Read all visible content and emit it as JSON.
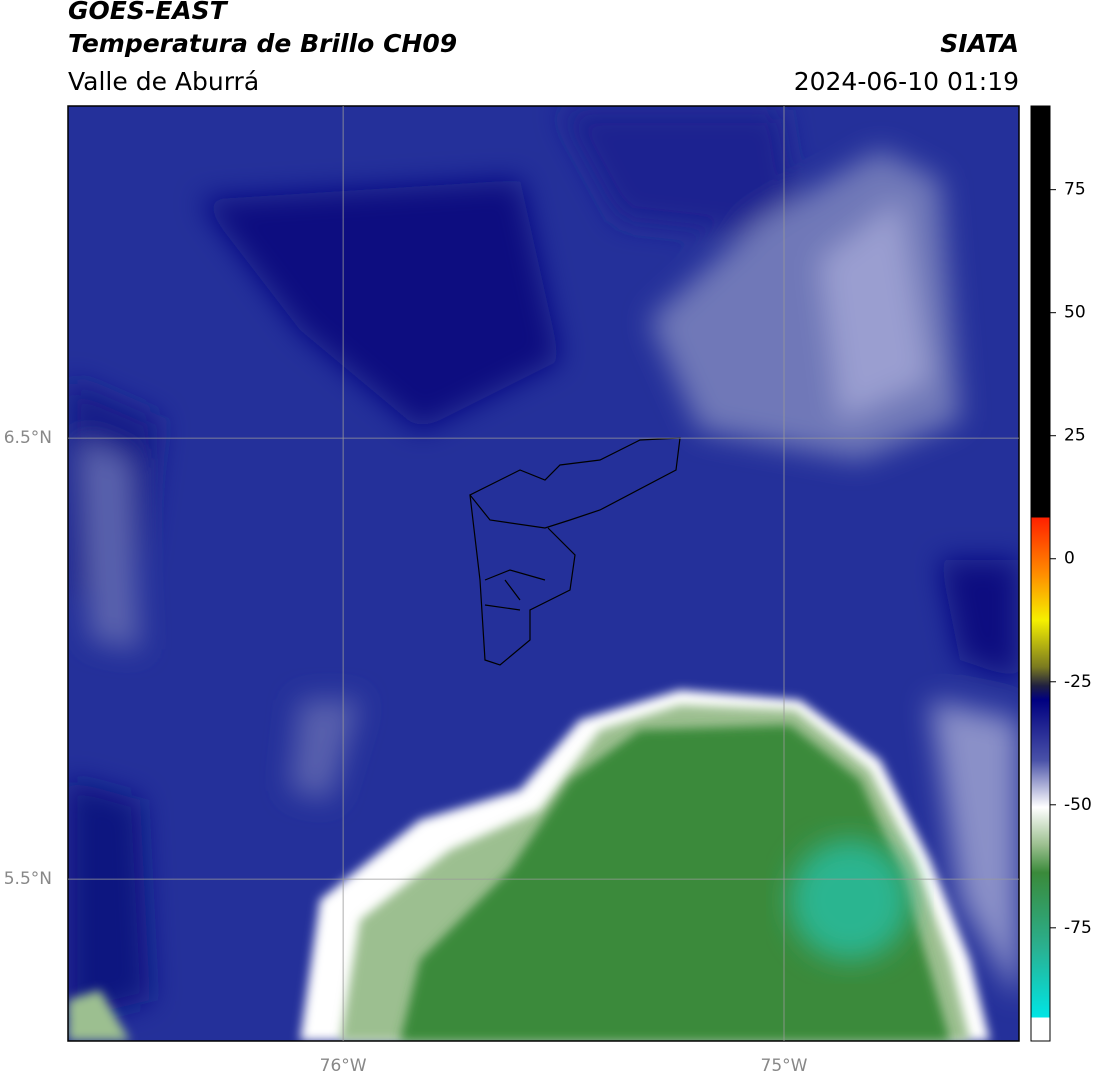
{
  "header": {
    "title": "GOES-EAST",
    "subtitle": "Temperatura de Brillo CH09",
    "region": "Valle de Aburrá",
    "source": "SIATA",
    "datetime": "2024-06-10 01:19"
  },
  "map": {
    "lon_range": [
      -76.624,
      -74.467
    ],
    "lat_range": [
      5.133,
      7.253
    ],
    "lon_ticks": [
      {
        "value": -76,
        "label": "76°W"
      },
      {
        "value": -75,
        "label": "75°W"
      }
    ],
    "lat_ticks": [
      {
        "value": 6.5,
        "label": "6.5°N"
      },
      {
        "value": 5.5,
        "label": "5.5°N"
      }
    ]
  },
  "colorbar": {
    "range": [
      -98,
      92
    ],
    "ticks": [
      75,
      50,
      25,
      0,
      -25,
      -50,
      -75
    ]
  }
}
